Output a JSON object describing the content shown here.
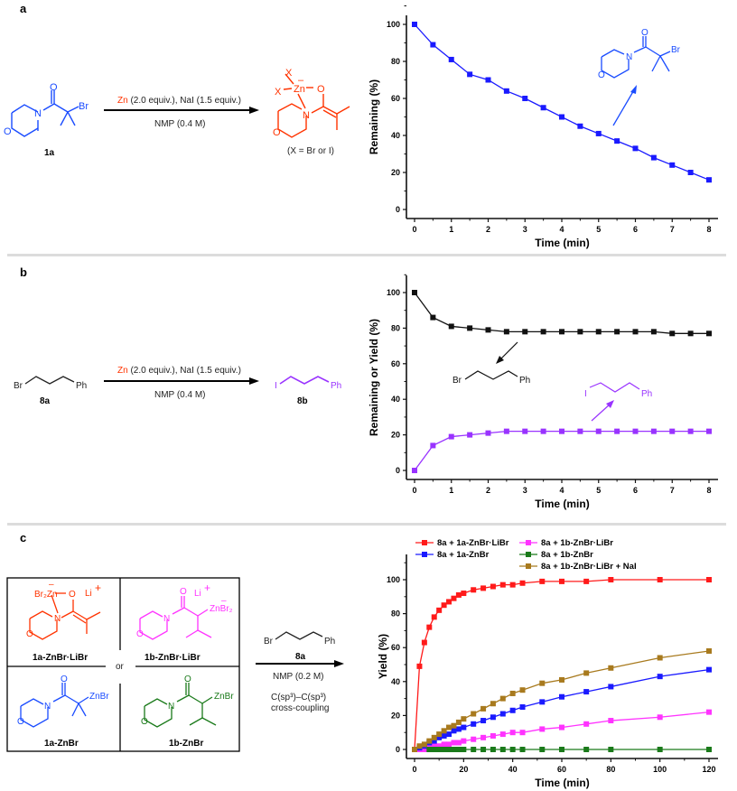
{
  "panels": {
    "a": {
      "letter": "a",
      "reactant_label": "1a",
      "reagents": {
        "zn": "Zn",
        "rest": " (2.0 equiv.), NaI (1.5 equiv.)"
      },
      "solvent": "NMP (0.4 M)",
      "product_note": "(X = Br or I)",
      "atoms": {
        "O": "O",
        "N": "N",
        "Br": "Br",
        "X": "X",
        "Zn": "Zn",
        "minus": "–"
      }
    },
    "b": {
      "letter": "b",
      "reactant_label": "8a",
      "product_label": "8b",
      "reagents": {
        "zn": "Zn",
        "rest": " (2.0 equiv.), NaI (1.5 equiv.)"
      },
      "solvent": "NMP (0.4 M)",
      "atoms": {
        "Br": "Br",
        "Ph": "Ph",
        "I": "I"
      }
    },
    "c": {
      "letter": "c",
      "boxes": [
        "1a-ZnBr·LiBr",
        "1b-ZnBr·LiBr",
        "1a-ZnBr",
        "1b-ZnBr"
      ],
      "or": "or",
      "reagent_label": "8a",
      "solvent": "NMP (0.2 M)",
      "coupling_line1": "C(sp³)–C(sp³)",
      "coupling_line2": "cross-coupling",
      "atoms": {
        "Br2Zn": "Br₂Zn",
        "ZnBr2": "ZnBr₂",
        "ZnBr": "ZnBr",
        "Li": "Li",
        "plus": "+",
        "minus": "–",
        "O": "O",
        "N": "N",
        "Br": "Br",
        "Ph": "Ph"
      }
    }
  },
  "chart_data": [
    {
      "type": "line",
      "title": "",
      "xlabel": "Time (min)",
      "ylabel": "Remaining (%)",
      "xlim": [
        0,
        8
      ],
      "ylim": [
        0,
        110
      ],
      "xticks": [
        "0",
        "1",
        "2",
        "3",
        "4",
        "5",
        "6",
        "7",
        "8"
      ],
      "yticks": [
        "0",
        "20",
        "40",
        "60",
        "80",
        "100"
      ],
      "x": [
        0,
        0.5,
        1,
        1.5,
        2,
        2.5,
        3,
        3.5,
        4,
        4.5,
        5,
        5.5,
        6,
        6.5,
        7,
        7.5,
        8
      ],
      "series": [
        {
          "name": "1a",
          "color": "#1a1aff",
          "values": [
            100,
            89,
            81,
            73,
            70,
            64,
            60,
            55,
            50,
            45,
            41,
            37,
            33,
            28,
            24,
            20,
            16
          ]
        }
      ],
      "annotations": [
        "Br"
      ]
    },
    {
      "type": "line",
      "title": "",
      "xlabel": "Time (min)",
      "ylabel": "Remaining or Yield (%)",
      "xlim": [
        0,
        8
      ],
      "ylim": [
        0,
        110
      ],
      "xticks": [
        "0",
        "1",
        "2",
        "3",
        "4",
        "5",
        "6",
        "7",
        "8"
      ],
      "yticks": [
        "0",
        "20",
        "40",
        "60",
        "80",
        "100"
      ],
      "x": [
        0,
        0.5,
        1,
        1.5,
        2,
        2.5,
        3,
        3.5,
        4,
        4.5,
        5,
        5.5,
        6,
        6.5,
        7,
        7.5,
        8
      ],
      "series": [
        {
          "name": "8a (Br)",
          "color": "#111111",
          "values": [
            100,
            86,
            81,
            80,
            79,
            78,
            78,
            78,
            78,
            78,
            78,
            78,
            78,
            78,
            77,
            77,
            77
          ]
        },
        {
          "name": "8b (I)",
          "color": "#9933ff",
          "values": [
            0,
            14,
            19,
            20,
            21,
            22,
            22,
            22,
            22,
            22,
            22,
            22,
            22,
            22,
            22,
            22,
            22
          ]
        }
      ],
      "annotations": [
        "Br",
        "Ph",
        "I",
        "Ph"
      ]
    },
    {
      "type": "line",
      "title": "",
      "xlabel": "Time (min)",
      "ylabel": "Yield (%)",
      "xlim": [
        0,
        120
      ],
      "ylim": [
        0,
        112
      ],
      "xticks": [
        "0",
        "20",
        "40",
        "60",
        "80",
        "100",
        "120"
      ],
      "yticks": [
        "0",
        "20",
        "40",
        "60",
        "80",
        "100"
      ],
      "legend_position": "top",
      "x": [
        0,
        2,
        4,
        6,
        8,
        10,
        12,
        14,
        16,
        18,
        20,
        24,
        28,
        32,
        36,
        40,
        44,
        52,
        60,
        70,
        80,
        100,
        120
      ],
      "series": [
        {
          "name": "8a + 1a-ZnBr·LiBr",
          "color": "#ff1a1a",
          "values": [
            0,
            49,
            63,
            72,
            78,
            82,
            85,
            87,
            89,
            91,
            92,
            94,
            95,
            96,
            97,
            97,
            98,
            99,
            99,
            99,
            100,
            100,
            100
          ]
        },
        {
          "name": "8a + 1b-ZnBr·LiBr",
          "color": "#ff33ff",
          "values": [
            0,
            0,
            0,
            1,
            2,
            2,
            3,
            3,
            4,
            4,
            5,
            6,
            7,
            8,
            9,
            10,
            10,
            12,
            13,
            15,
            17,
            19,
            22
          ]
        },
        {
          "name": "8a + 1a-ZnBr",
          "color": "#1a1aff",
          "values": [
            0,
            1,
            2,
            4,
            5,
            7,
            8,
            9,
            11,
            12,
            13,
            15,
            17,
            19,
            21,
            23,
            25,
            28,
            31,
            34,
            37,
            43,
            47
          ]
        },
        {
          "name": "8a + 1b-ZnBr",
          "color": "#1a7a1a",
          "values": [
            null,
            null,
            null,
            0,
            0,
            0,
            0,
            0,
            0,
            0,
            0,
            0,
            0,
            0,
            0,
            0,
            0,
            0,
            0,
            0,
            0,
            0,
            0
          ]
        },
        {
          "name": "8a + 1b-ZnBr·LiBr + NaI",
          "color": "#a87a1e",
          "values": [
            0,
            2,
            3,
            5,
            7,
            9,
            11,
            13,
            14,
            16,
            18,
            21,
            24,
            27,
            30,
            33,
            35,
            39,
            41,
            45,
            48,
            54,
            58
          ]
        }
      ]
    }
  ]
}
